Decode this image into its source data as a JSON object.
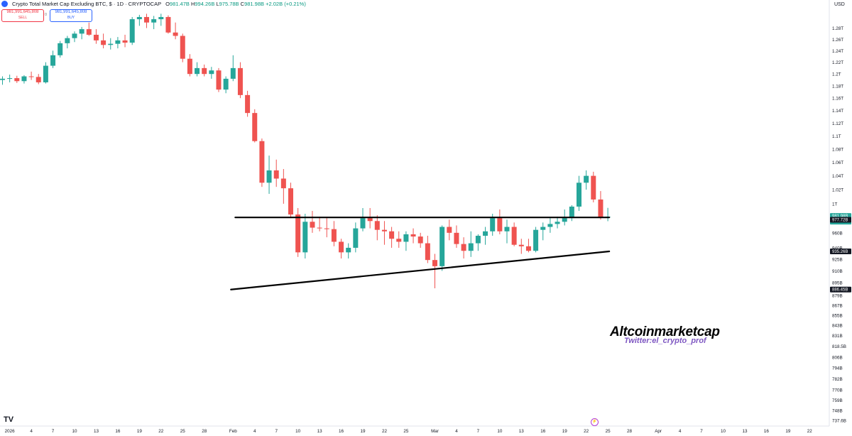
{
  "header": {
    "symbol": "Crypto Total Market Cap Excluding BTC, $ · 1D · CRYPTOCAP",
    "ohlc": {
      "o_label": "O",
      "o": "981.47B",
      "h_label": "H",
      "h": "994.26B",
      "l_label": "L",
      "l": "975.78B",
      "c_label": "C",
      "c": "981.98B",
      "change": "+2.02B (+0.21%)"
    }
  },
  "trade": {
    "sell_price": "981,991,645,808",
    "sell_label": "SELL",
    "spread": "0",
    "buy_price": "981,991,645,808",
    "buy_label": "BUY"
  },
  "currency": "USD",
  "watermark": {
    "title": "Altcoinmarketcap",
    "subtitle": "Twitter:el_crypto_prof"
  },
  "tv_logo": "TV",
  "colors": {
    "up": "#26a69a",
    "down": "#ef5350",
    "trendline": "#000000",
    "axis_text": "#131722",
    "badge_bg": "#131722",
    "current_badge": "#26a69a"
  },
  "chart_data": {
    "type": "candlestick",
    "title": "Crypto Total Market Cap Excluding BTC",
    "y_scale": "log",
    "ylim": [
      730,
      1310
    ],
    "y_unit": "B USD",
    "y_ticks": [
      {
        "v": 1280,
        "label": "1.28T"
      },
      {
        "v": 1260,
        "label": "1.26T"
      },
      {
        "v": 1240,
        "label": "1.24T"
      },
      {
        "v": 1220,
        "label": "1.22T"
      },
      {
        "v": 1200,
        "label": "1.2T"
      },
      {
        "v": 1180,
        "label": "1.18T"
      },
      {
        "v": 1160,
        "label": "1.16T"
      },
      {
        "v": 1140,
        "label": "1.14T"
      },
      {
        "v": 1120,
        "label": "1.12T"
      },
      {
        "v": 1100,
        "label": "1.1T"
      },
      {
        "v": 1080,
        "label": "1.08T"
      },
      {
        "v": 1060,
        "label": "1.06T"
      },
      {
        "v": 1040,
        "label": "1.04T"
      },
      {
        "v": 1020,
        "label": "1.02T"
      },
      {
        "v": 1000,
        "label": "1T"
      },
      {
        "v": 960,
        "label": "960B"
      },
      {
        "v": 940,
        "label": "940B"
      },
      {
        "v": 925,
        "label": "925B"
      },
      {
        "v": 910,
        "label": "910B"
      },
      {
        "v": 895,
        "label": "895B"
      },
      {
        "v": 879,
        "label": "879B"
      },
      {
        "v": 867,
        "label": "867B"
      },
      {
        "v": 855,
        "label": "855B"
      },
      {
        "v": 843,
        "label": "843B"
      },
      {
        "v": 831,
        "label": "831B"
      },
      {
        "v": 818.5,
        "label": "818.5B"
      },
      {
        "v": 806,
        "label": "806B"
      },
      {
        "v": 794,
        "label": "794B"
      },
      {
        "v": 782,
        "label": "782B"
      },
      {
        "v": 770,
        "label": "770B"
      },
      {
        "v": 759,
        "label": "759B"
      },
      {
        "v": 748,
        "label": "748B"
      },
      {
        "v": 737.6,
        "label": "737.6B"
      }
    ],
    "price_badges": [
      {
        "v": 981.98,
        "label": "981.98B",
        "sub": "09:11:44",
        "color": "#26a69a"
      },
      {
        "v": 977.72,
        "label": "977.72B",
        "color": "#131722"
      },
      {
        "v": 935.26,
        "label": "935.26B",
        "color": "#131722"
      },
      {
        "v": 886.45,
        "label": "886.45B",
        "color": "#131722"
      }
    ],
    "x_ticks": [
      {
        "i": -1,
        "label": "28"
      },
      {
        "i": 1,
        "label": "2026"
      },
      {
        "i": 4,
        "label": "4"
      },
      {
        "i": 7,
        "label": "7"
      },
      {
        "i": 10,
        "label": "10"
      },
      {
        "i": 13,
        "label": "13"
      },
      {
        "i": 16,
        "label": "16"
      },
      {
        "i": 19,
        "label": "19"
      },
      {
        "i": 22,
        "label": "22"
      },
      {
        "i": 25,
        "label": "25"
      },
      {
        "i": 28,
        "label": "28"
      },
      {
        "i": 32,
        "label": "Feb"
      },
      {
        "i": 35,
        "label": "4"
      },
      {
        "i": 38,
        "label": "7"
      },
      {
        "i": 41,
        "label": "10"
      },
      {
        "i": 44,
        "label": "13"
      },
      {
        "i": 47,
        "label": "16"
      },
      {
        "i": 50,
        "label": "19"
      },
      {
        "i": 53,
        "label": "22"
      },
      {
        "i": 56,
        "label": "25"
      },
      {
        "i": 60,
        "label": "Mar"
      },
      {
        "i": 63,
        "label": "4"
      },
      {
        "i": 66,
        "label": "7"
      },
      {
        "i": 69,
        "label": "10"
      },
      {
        "i": 72,
        "label": "13"
      },
      {
        "i": 75,
        "label": "16"
      },
      {
        "i": 78,
        "label": "19"
      },
      {
        "i": 81,
        "label": "22"
      },
      {
        "i": 84,
        "label": "25"
      },
      {
        "i": 87,
        "label": "28"
      },
      {
        "i": 91,
        "label": "Apr"
      },
      {
        "i": 94,
        "label": "4"
      },
      {
        "i": 97,
        "label": "7"
      },
      {
        "i": 100,
        "label": "10"
      },
      {
        "i": 103,
        "label": "13"
      },
      {
        "i": 106,
        "label": "16"
      },
      {
        "i": 109,
        "label": "19"
      },
      {
        "i": 112,
        "label": "22"
      }
    ],
    "candles": [
      [
        1190,
        1196,
        1182,
        1192
      ],
      [
        1192,
        1199,
        1186,
        1193
      ],
      [
        1193,
        1197,
        1185,
        1188
      ],
      [
        1188,
        1198,
        1184,
        1196
      ],
      [
        1196,
        1204,
        1190,
        1195
      ],
      [
        1195,
        1200,
        1183,
        1186
      ],
      [
        1186,
        1220,
        1184,
        1214
      ],
      [
        1214,
        1240,
        1210,
        1232
      ],
      [
        1232,
        1257,
        1228,
        1253
      ],
      [
        1253,
        1266,
        1244,
        1262
      ],
      [
        1262,
        1274,
        1255,
        1270
      ],
      [
        1270,
        1282,
        1260,
        1278
      ],
      [
        1278,
        1290,
        1266,
        1268
      ],
      [
        1268,
        1278,
        1252,
        1258
      ],
      [
        1258,
        1270,
        1244,
        1250
      ],
      [
        1250,
        1262,
        1242,
        1252
      ],
      [
        1252,
        1264,
        1244,
        1258
      ],
      [
        1258,
        1268,
        1246,
        1254
      ],
      [
        1254,
        1300,
        1250,
        1296
      ],
      [
        1296,
        1304,
        1284,
        1300
      ],
      [
        1300,
        1306,
        1280,
        1290
      ],
      [
        1290,
        1302,
        1278,
        1296
      ],
      [
        1296,
        1306,
        1284,
        1300
      ],
      [
        1300,
        1303,
        1270,
        1272
      ],
      [
        1272,
        1290,
        1260,
        1266
      ],
      [
        1266,
        1270,
        1220,
        1226
      ],
      [
        1226,
        1234,
        1196,
        1200
      ],
      [
        1200,
        1220,
        1196,
        1210
      ],
      [
        1210,
        1216,
        1196,
        1200
      ],
      [
        1200,
        1212,
        1192,
        1206
      ],
      [
        1206,
        1210,
        1170,
        1174
      ],
      [
        1174,
        1196,
        1168,
        1192
      ],
      [
        1192,
        1232,
        1188,
        1210
      ],
      [
        1210,
        1220,
        1160,
        1165
      ],
      [
        1165,
        1172,
        1130,
        1136
      ],
      [
        1136,
        1142,
        1090,
        1092
      ],
      [
        1092,
        1096,
        1024,
        1030
      ],
      [
        1030,
        1070,
        1014,
        1048
      ],
      [
        1048,
        1064,
        1024,
        1036
      ],
      [
        1036,
        1050,
        1000,
        1022
      ],
      [
        1022,
        1030,
        980,
        985
      ],
      [
        985,
        994,
        928,
        934
      ],
      [
        934,
        986,
        926,
        975
      ],
      [
        975,
        990,
        960,
        967
      ],
      [
        967,
        982,
        962,
        966
      ],
      [
        966,
        980,
        954,
        965
      ],
      [
        965,
        976,
        942,
        948
      ],
      [
        948,
        952,
        926,
        934
      ],
      [
        934,
        946,
        926,
        940
      ],
      [
        940,
        974,
        934,
        966
      ],
      [
        966,
        994,
        962,
        980
      ],
      [
        980,
        994,
        966,
        976
      ],
      [
        976,
        984,
        950,
        964
      ],
      [
        964,
        976,
        944,
        962
      ],
      [
        962,
        968,
        940,
        952
      ],
      [
        952,
        962,
        940,
        948
      ],
      [
        948,
        962,
        936,
        958
      ],
      [
        958,
        966,
        946,
        955
      ],
      [
        955,
        960,
        940,
        946
      ],
      [
        946,
        956,
        920,
        924
      ],
      [
        924,
        932,
        888,
        916
      ],
      [
        916,
        970,
        910,
        968
      ],
      [
        968,
        978,
        950,
        960
      ],
      [
        960,
        970,
        940,
        945
      ],
      [
        945,
        954,
        926,
        936
      ],
      [
        936,
        962,
        928,
        946
      ],
      [
        946,
        958,
        936,
        956
      ],
      [
        956,
        968,
        944,
        962
      ],
      [
        962,
        986,
        956,
        980
      ],
      [
        980,
        992,
        958,
        962
      ],
      [
        962,
        978,
        946,
        968
      ],
      [
        968,
        974,
        942,
        944
      ],
      [
        944,
        952,
        932,
        942
      ],
      [
        942,
        952,
        934,
        936
      ],
      [
        936,
        968,
        934,
        964
      ],
      [
        964,
        974,
        950,
        968
      ],
      [
        968,
        980,
        960,
        972
      ],
      [
        972,
        982,
        966,
        975
      ],
      [
        975,
        992,
        970,
        980
      ],
      [
        980,
        998,
        976,
        996
      ],
      [
        996,
        1040,
        990,
        1030
      ],
      [
        1030,
        1048,
        1020,
        1040
      ],
      [
        1040,
        1046,
        1002,
        1006
      ],
      [
        1006,
        1018,
        978,
        981.47
      ],
      [
        981.47,
        994.26,
        975.78,
        981.98
      ]
    ],
    "candle_index_offset": 0,
    "trendlines": [
      {
        "name": "Resistance",
        "from": {
          "i": 32.3,
          "v": 981
        },
        "to": {
          "i": 84.2,
          "v": 981
        }
      },
      {
        "name": "Support",
        "from": {
          "i": 31.7,
          "v": 886.45
        },
        "to": {
          "i": 84.2,
          "v": 935.26
        }
      }
    ]
  }
}
